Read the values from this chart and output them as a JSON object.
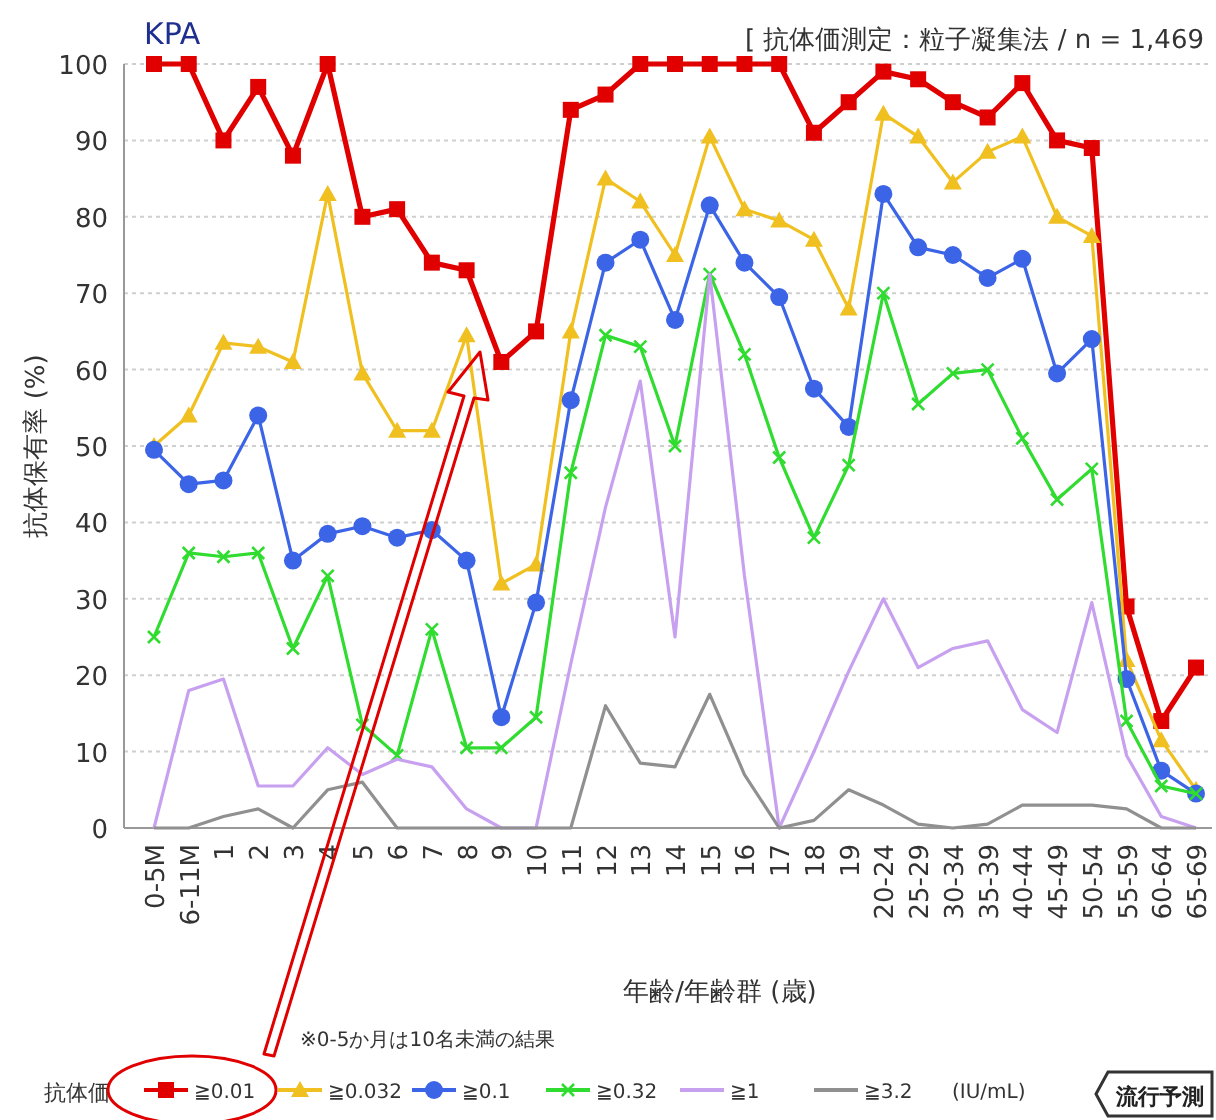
{
  "chart_data": {
    "type": "line",
    "title": "KPA",
    "subtitle": "[ 抗体価測定：粒子凝集法 / n = 1,469",
    "xlabel": "年齢/年齢群 (歳)",
    "ylabel": "抗体保有率 (%)",
    "legend_title": "抗体価",
    "annotations": [
      "※0-5か月は10名未満の結果",
      "(IU/mL)",
      "流行予測"
    ],
    "categories": [
      "0-5M",
      "6-11M",
      "1",
      "2",
      "3",
      "4",
      "5",
      "6",
      "7",
      "8",
      "9",
      "10",
      "11",
      "12",
      "13",
      "14",
      "15",
      "16",
      "17",
      "18",
      "19",
      "20-24",
      "25-29",
      "30-34",
      "35-39",
      "40-44",
      "45-49",
      "50-54",
      "55-59",
      "60-64",
      "65-69"
    ],
    "ylim": [
      0,
      100
    ],
    "yticks": [
      0,
      10,
      20,
      30,
      40,
      50,
      60,
      70,
      80,
      90,
      100
    ],
    "grid": "y",
    "legend": "bottom",
    "series": [
      {
        "name": "≧0.01",
        "color": "#e00000",
        "marker": "square",
        "values": [
          100,
          100,
          90,
          97,
          88,
          100,
          80,
          81,
          74,
          73,
          61,
          65,
          94,
          96,
          100,
          100,
          100,
          100,
          100,
          91,
          95,
          99,
          98,
          95,
          93,
          97.5,
          90,
          89,
          29,
          14,
          21
        ]
      },
      {
        "name": "≧0.032",
        "color": "#f0c020",
        "marker": "triangle",
        "values": [
          50,
          54,
          63.5,
          63,
          61,
          83,
          59.5,
          52,
          52,
          64.5,
          32,
          34.5,
          65,
          85,
          82,
          75,
          90.5,
          81,
          79.5,
          77,
          68,
          93.5,
          90.5,
          84.5,
          88.5,
          90.5,
          80,
          77.5,
          22,
          11.5,
          5
        ]
      },
      {
        "name": "≧0.1",
        "color": "#3c64e6",
        "marker": "circle",
        "values": [
          49.5,
          45,
          45.5,
          54,
          35,
          38.5,
          39.5,
          38,
          39,
          35,
          14.5,
          29.5,
          56,
          74,
          77,
          66.5,
          81.5,
          74,
          69.5,
          57.5,
          52.5,
          83,
          76,
          75,
          72,
          74.5,
          59.5,
          64,
          19.5,
          7.5,
          4.5
        ]
      },
      {
        "name": "≧0.32",
        "color": "#30dc30",
        "marker": "cross",
        "values": [
          25,
          36,
          35.5,
          36,
          23.5,
          33,
          13.5,
          9.5,
          26,
          10.5,
          10.5,
          14.5,
          46.5,
          64.5,
          63,
          50,
          72.5,
          62,
          48.5,
          38,
          47.5,
          70,
          55.5,
          59.5,
          60,
          51,
          43,
          47,
          14,
          5.5,
          4.5
        ]
      },
      {
        "name": "≧1",
        "color": "#c8a0f0",
        "marker": "none",
        "values": [
          0,
          18,
          19.5,
          5.5,
          5.5,
          10.5,
          7,
          9,
          8,
          2.5,
          0,
          0,
          21.5,
          42,
          58.5,
          25,
          72.5,
          33,
          0,
          10,
          20.5,
          30,
          21,
          23.5,
          24.5,
          15.5,
          12.5,
          29.5,
          9.5,
          1.5,
          0
        ]
      },
      {
        "name": "≧3.2",
        "color": "#909090",
        "marker": "none",
        "values": [
          0,
          0,
          1.5,
          2.5,
          0,
          5,
          6,
          0,
          0,
          0,
          0,
          0,
          0,
          16,
          8.5,
          8,
          17.5,
          7,
          0,
          1,
          5,
          3,
          0.5,
          0,
          0.5,
          3,
          3,
          3,
          2.5,
          0,
          0
        ]
      }
    ]
  }
}
